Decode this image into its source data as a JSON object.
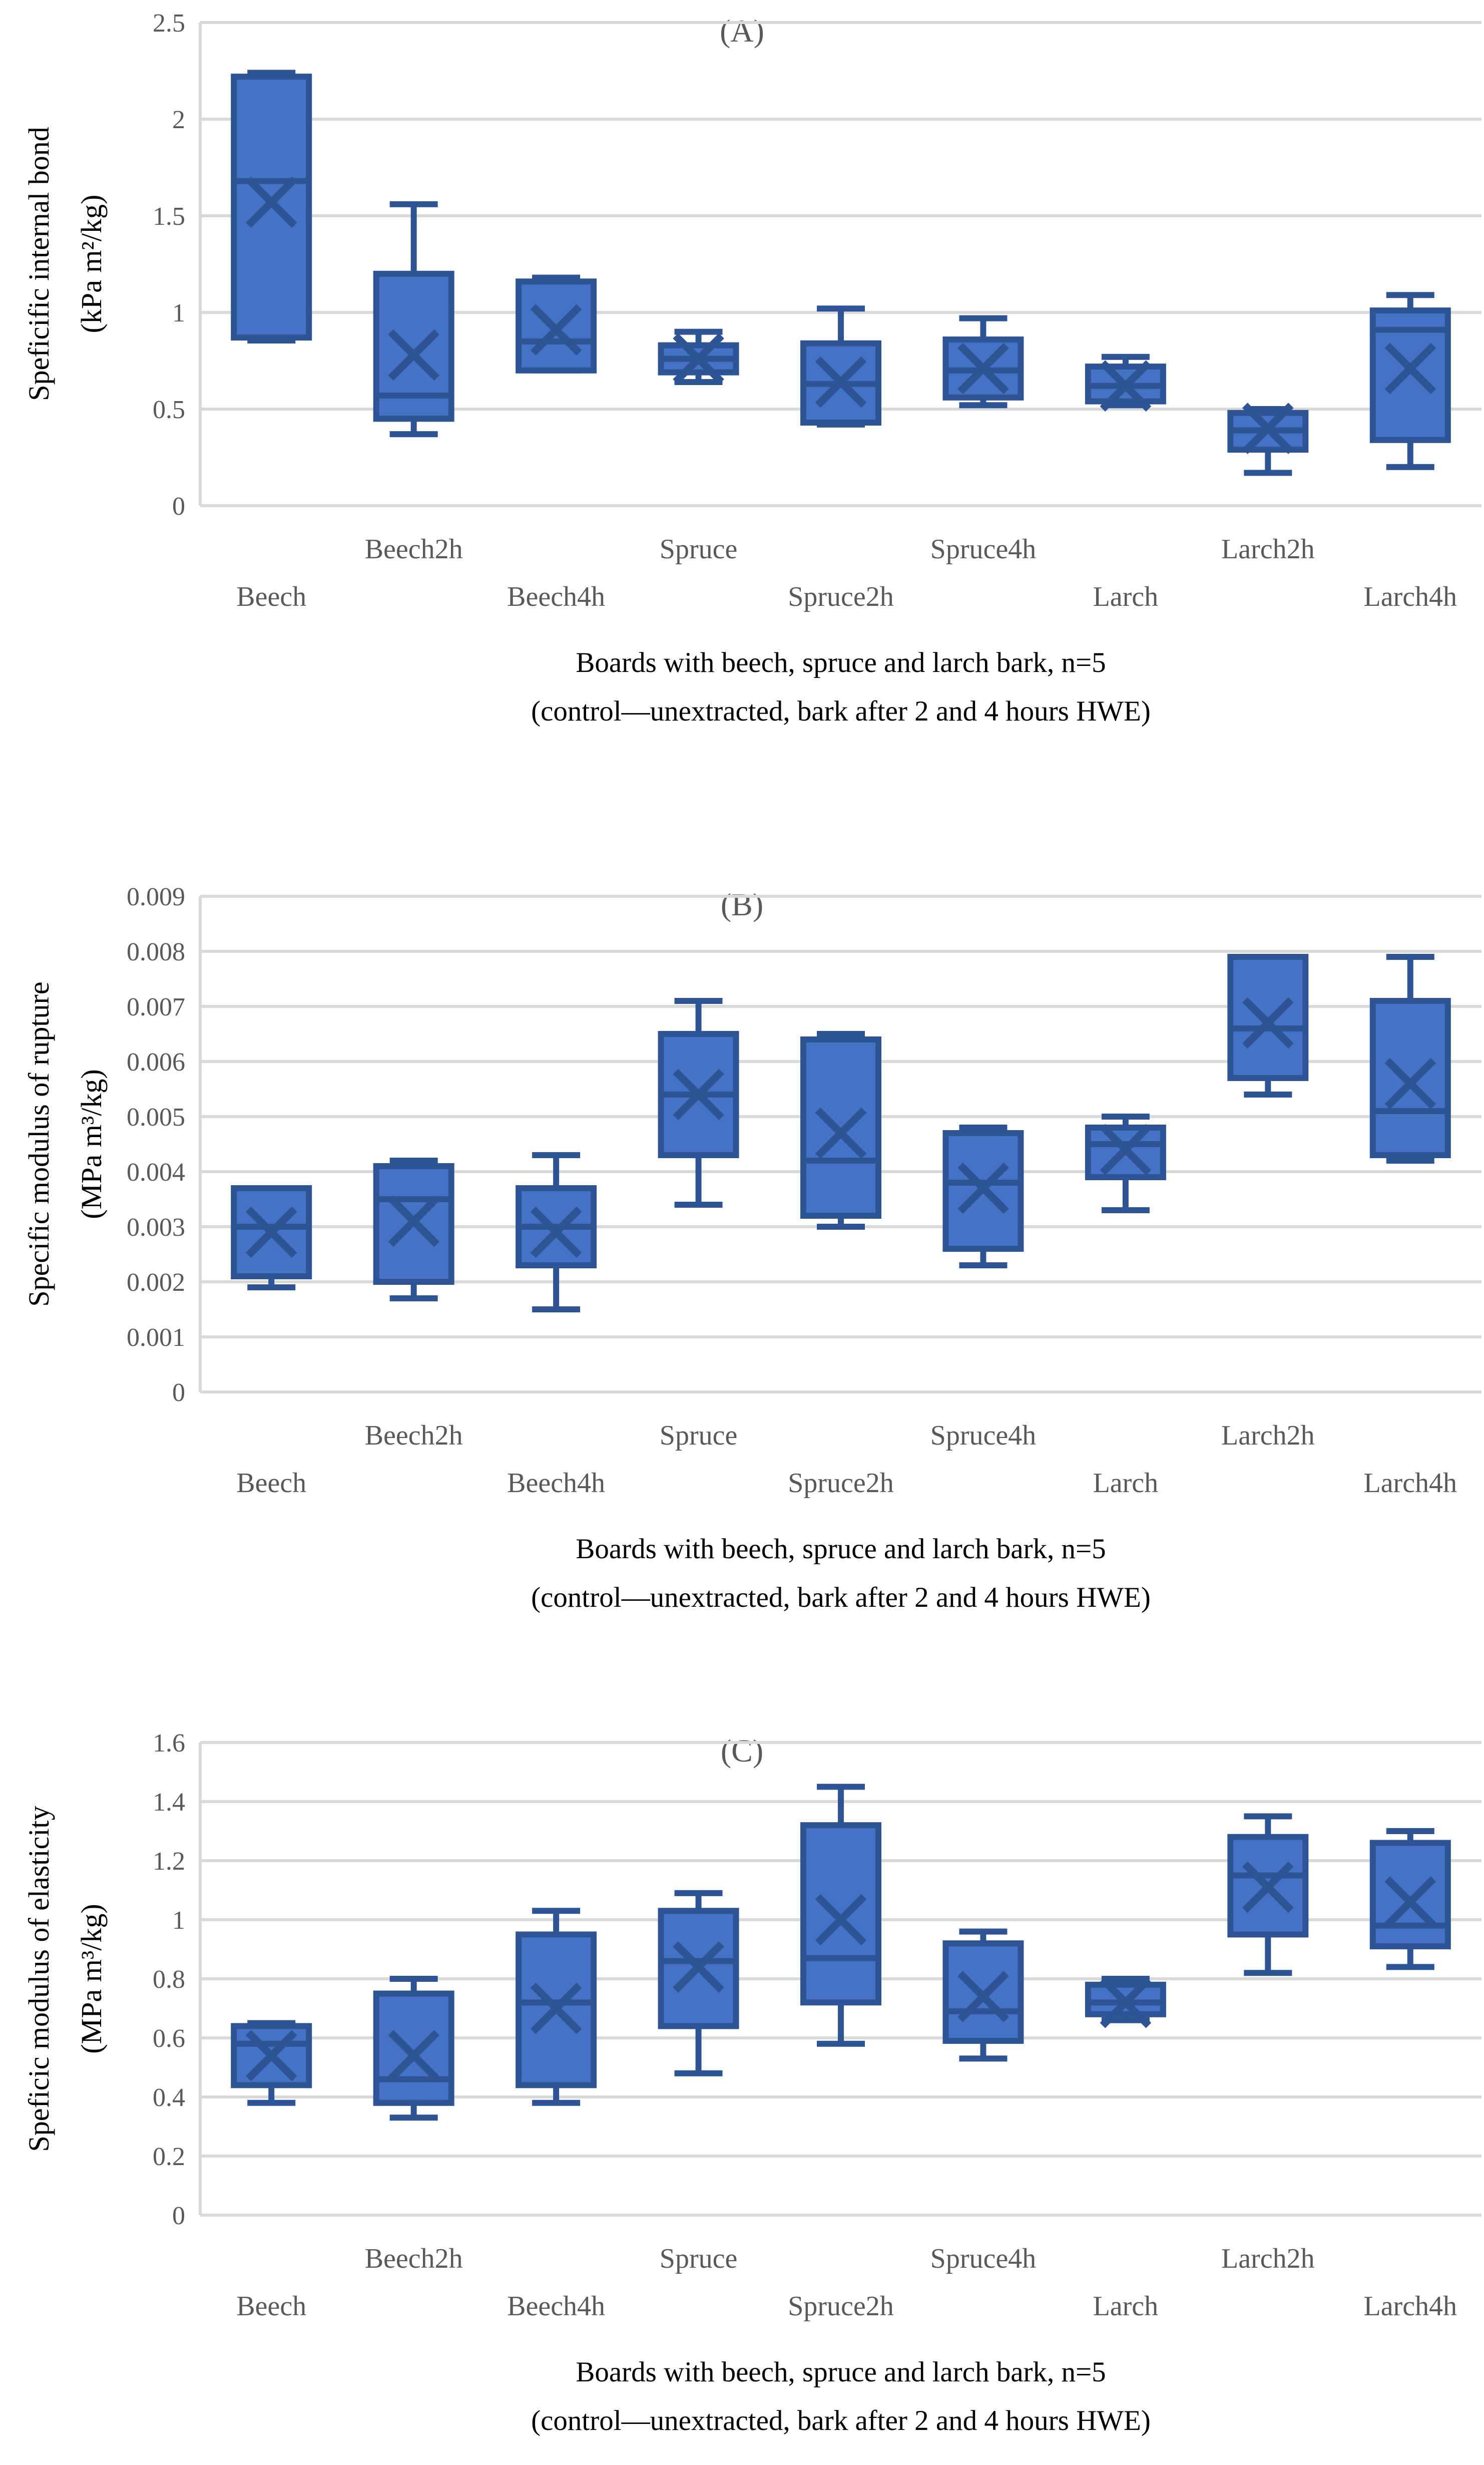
{
  "figure": {
    "panels": [
      "(A)",
      "(B)",
      "(C)"
    ]
  },
  "colors": {
    "box_fill": "#4472C4",
    "box_border": "#2F5496",
    "gridline": "#D9D9D9",
    "axis_line": "#D9D9D9",
    "tick_text": "#595959",
    "panel_letter": "#595959",
    "caption_text": "#000000"
  },
  "chart_data": [
    {
      "type": "boxplot",
      "panel": "(A)",
      "ylabel_line1": "Speficific internal bond",
      "ylabel_line2": "(kPa m²/kg)",
      "xlabel_line1": "Boards with beech, spruce and larch bark, n=5",
      "xlabel_line2": "(control—unextracted, bark after 2 and 4 hours HWE)",
      "ylim": [
        0,
        2.5
      ],
      "ytick_step": 0.5,
      "ytick_labels": [
        "0",
        "0.5",
        "1",
        "1.5",
        "2",
        "2.5"
      ],
      "grid": true,
      "legend": "none",
      "categories": [
        "Beech",
        "Beech2h",
        "Beech4h",
        "Spruce",
        "Spruce2h",
        "Spruce4h",
        "Larch",
        "Larch2h",
        "Larch4h"
      ],
      "series": [
        {
          "name": "Beech",
          "min": 0.855,
          "q1": 0.87,
          "median": 1.68,
          "mean": 1.57,
          "q3": 2.22,
          "max": 2.24
        },
        {
          "name": "Beech2h",
          "min": 0.37,
          "q1": 0.45,
          "median": 0.57,
          "mean": 0.78,
          "q3": 1.2,
          "max": 1.56
        },
        {
          "name": "Beech4h",
          "min": 0.7,
          "q1": 0.7,
          "median": 0.85,
          "mean": 0.91,
          "q3": 1.16,
          "max": 1.18
        },
        {
          "name": "Spruce",
          "min": 0.64,
          "q1": 0.69,
          "median": 0.76,
          "mean": 0.76,
          "q3": 0.83,
          "max": 0.9
        },
        {
          "name": "Spruce2h",
          "min": 0.42,
          "q1": 0.43,
          "median": 0.63,
          "mean": 0.64,
          "q3": 0.84,
          "max": 1.02
        },
        {
          "name": "Spruce4h",
          "min": 0.52,
          "q1": 0.56,
          "median": 0.7,
          "mean": 0.71,
          "q3": 0.86,
          "max": 0.97
        },
        {
          "name": "Larch",
          "min": 0.52,
          "q1": 0.54,
          "median": 0.62,
          "mean": 0.62,
          "q3": 0.72,
          "max": 0.77
        },
        {
          "name": "Larch2h",
          "min": 0.17,
          "q1": 0.29,
          "median": 0.39,
          "mean": 0.4,
          "q3": 0.48,
          "max": 0.5
        },
        {
          "name": "Larch4h",
          "min": 0.2,
          "q1": 0.34,
          "median": 0.91,
          "mean": 0.71,
          "q3": 1.01,
          "max": 1.09
        }
      ]
    },
    {
      "type": "boxplot",
      "panel": "(B)",
      "ylabel_line1": "Specific modulus of rupture",
      "ylabel_line2": "(MPa m³/kg)",
      "xlabel_line1": "Boards with beech, spruce and larch bark, n=5",
      "xlabel_line2": "(control—unextracted, bark after 2 and 4 hours HWE)",
      "ylim": [
        0,
        0.009
      ],
      "ytick_step": 0.001,
      "ytick_labels": [
        "0",
        "0.001",
        "0.002",
        "0.003",
        "0.004",
        "0.005",
        "0.006",
        "0.007",
        "0.008",
        "0.009"
      ],
      "grid": true,
      "legend": "none",
      "categories": [
        "Beech",
        "Beech2h",
        "Beech4h",
        "Spruce",
        "Spruce2h",
        "Spruce4h",
        "Larch",
        "Larch2h",
        "Larch4h"
      ],
      "series": [
        {
          "name": "Beech",
          "min": 0.0019,
          "q1": 0.0021,
          "median": 0.003,
          "mean": 0.0029,
          "q3": 0.0037,
          "max": 0.0037
        },
        {
          "name": "Beech2h",
          "min": 0.0017,
          "q1": 0.002,
          "median": 0.0035,
          "mean": 0.0031,
          "q3": 0.0041,
          "max": 0.0042
        },
        {
          "name": "Beech4h",
          "min": 0.0015,
          "q1": 0.0023,
          "median": 0.003,
          "mean": 0.0029,
          "q3": 0.0037,
          "max": 0.0043
        },
        {
          "name": "Spruce",
          "min": 0.0034,
          "q1": 0.0043,
          "median": 0.0054,
          "mean": 0.0054,
          "q3": 0.0065,
          "max": 0.0071
        },
        {
          "name": "Spruce2h",
          "min": 0.003,
          "q1": 0.0032,
          "median": 0.0042,
          "mean": 0.0047,
          "q3": 0.0064,
          "max": 0.0065
        },
        {
          "name": "Spruce4h",
          "min": 0.0023,
          "q1": 0.0026,
          "median": 0.0038,
          "mean": 0.0037,
          "q3": 0.0047,
          "max": 0.0048
        },
        {
          "name": "Larch",
          "min": 0.0033,
          "q1": 0.0039,
          "median": 0.0045,
          "mean": 0.0044,
          "q3": 0.0048,
          "max": 0.005
        },
        {
          "name": "Larch2h",
          "min": 0.0054,
          "q1": 0.0057,
          "median": 0.0066,
          "mean": 0.0067,
          "q3": 0.0079,
          "max": 0.0079
        },
        {
          "name": "Larch4h",
          "min": 0.0042,
          "q1": 0.0043,
          "median": 0.0051,
          "mean": 0.0056,
          "q3": 0.0071,
          "max": 0.0079
        }
      ]
    },
    {
      "type": "boxplot",
      "panel": "(C)",
      "ylabel_line1": "Speficic modulus of elasticity",
      "ylabel_line2": "(MPa m³/kg)",
      "xlabel_line1": "Boards with beech, spruce and larch bark, n=5",
      "xlabel_line2": "(control—unextracted, bark after 2 and 4 hours HWE)",
      "ylim": [
        0,
        1.6
      ],
      "ytick_step": 0.2,
      "ytick_labels": [
        "0",
        "0.2",
        "0.4",
        "0.6",
        "0.8",
        "1",
        "1.2",
        "1.4",
        "1.6"
      ],
      "grid": true,
      "legend": "none",
      "categories": [
        "Beech",
        "Beech2h",
        "Beech4h",
        "Spruce",
        "Spruce2h",
        "Spruce4h",
        "Larch",
        "Larch2h",
        "Larch4h"
      ],
      "series": [
        {
          "name": "Beech",
          "min": 0.38,
          "q1": 0.44,
          "median": 0.58,
          "mean": 0.54,
          "q3": 0.64,
          "max": 0.65
        },
        {
          "name": "Beech2h",
          "min": 0.33,
          "q1": 0.38,
          "median": 0.46,
          "mean": 0.54,
          "q3": 0.75,
          "max": 0.8
        },
        {
          "name": "Beech4h",
          "min": 0.38,
          "q1": 0.44,
          "median": 0.72,
          "mean": 0.7,
          "q3": 0.95,
          "max": 1.03
        },
        {
          "name": "Spruce",
          "min": 0.48,
          "q1": 0.64,
          "median": 0.86,
          "mean": 0.84,
          "q3": 1.03,
          "max": 1.09
        },
        {
          "name": "Spruce2h",
          "min": 0.58,
          "q1": 0.72,
          "median": 0.87,
          "mean": 1.0,
          "q3": 1.32,
          "max": 1.45
        },
        {
          "name": "Spruce4h",
          "min": 0.53,
          "q1": 0.59,
          "median": 0.69,
          "mean": 0.74,
          "q3": 0.92,
          "max": 0.96
        },
        {
          "name": "Larch",
          "min": 0.66,
          "q1": 0.68,
          "median": 0.72,
          "mean": 0.72,
          "q3": 0.78,
          "max": 0.8
        },
        {
          "name": "Larch2h",
          "min": 0.82,
          "q1": 0.95,
          "median": 1.15,
          "mean": 1.11,
          "q3": 1.28,
          "max": 1.35
        },
        {
          "name": "Larch4h",
          "min": 0.84,
          "q1": 0.91,
          "median": 0.98,
          "mean": 1.06,
          "q3": 1.26,
          "max": 1.3
        }
      ]
    }
  ]
}
